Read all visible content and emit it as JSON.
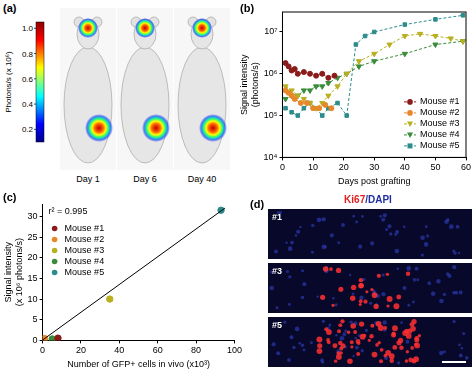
{
  "figure_labels": [
    "(a)",
    "(b)",
    "(c)",
    "(d)"
  ],
  "panel_a": {
    "colorbar": {
      "title": "Photons/s (x 10⁶)",
      "range": [
        0.1,
        1.05
      ],
      "ticks": [
        0.2,
        0.4,
        0.6,
        0.8,
        {
          "value": 1,
          "label": "1.0"
        }
      ]
    },
    "images": [
      "Day 1",
      "Day 6",
      "Day 40"
    ]
  },
  "chart_data": [
    {
      "type": "line",
      "xlabel": "Days post grafting",
      "ylabel": [
        "Signal intensity",
        "(photons/s)"
      ],
      "log": "y",
      "grid": false,
      "legend": "lower right",
      "xlim": [
        0,
        60
      ],
      "xticks": [
        0,
        10,
        20,
        30,
        40,
        50,
        60
      ],
      "ylim": [
        10000,
        30000000
      ],
      "yticks": [
        {
          "value": 10000,
          "label": "10⁴"
        },
        {
          "value": 100000,
          "label": "10⁵"
        },
        {
          "value": 1000000,
          "label": "10⁶"
        },
        {
          "value": 10000000,
          "label": "10⁷"
        }
      ],
      "series": [
        {
          "name": "Mouse #1",
          "color": "#8b1a1a",
          "marker": "circle",
          "line_style": "dashed",
          "x": [
            1,
            2,
            3,
            4,
            5,
            7,
            9,
            11,
            13,
            15,
            17
          ],
          "values": [
            1800000,
            1500000,
            1200000,
            1300000,
            1000000,
            1100000,
            1000000,
            900000,
            1000000,
            800000,
            900000
          ]
        },
        {
          "name": "Mouse #2",
          "color": "#e8862a",
          "marker": "circle",
          "line_style": "dashed",
          "x": [
            1,
            2,
            3,
            4,
            6,
            8,
            10,
            12,
            14,
            16
          ],
          "values": [
            400000,
            350000,
            300000,
            250000,
            200000,
            200000,
            150000,
            150000,
            180000,
            150000
          ]
        },
        {
          "name": "Mouse #3",
          "color": "#b8b020",
          "marker": "triangle-down",
          "line_style": "dashed",
          "x": [
            1,
            3,
            5,
            7,
            9,
            11,
            13,
            15,
            18,
            21,
            25,
            30,
            35,
            40,
            45,
            50,
            55,
            59
          ],
          "values": [
            500000,
            400000,
            300000,
            250000,
            200000,
            150000,
            200000,
            300000,
            500000,
            1000000,
            2000000,
            3000000,
            5000000,
            8000000,
            9000000,
            8000000,
            7000000,
            6000000
          ]
        },
        {
          "name": "Mouse #4",
          "color": "#3a8c3a",
          "marker": "triangle-down",
          "line_style": "dashed",
          "x": [
            1,
            3,
            5,
            7,
            9,
            11,
            13,
            15,
            18,
            21,
            25,
            30,
            40,
            50,
            59
          ],
          "values": [
            250000,
            300000,
            300000,
            400000,
            400000,
            500000,
            500000,
            600000,
            800000,
            1000000,
            1500000,
            2000000,
            3000000,
            5000000,
            6000000
          ]
        },
        {
          "name": "Mouse #5",
          "color": "#2a8c8c",
          "marker": "square",
          "line_style": "dashed",
          "x": [
            1,
            3,
            5,
            7,
            9,
            11,
            13,
            15,
            18,
            21,
            24,
            27,
            30,
            40,
            50,
            59
          ],
          "values": [
            150000,
            120000,
            100000,
            150000,
            200000,
            150000,
            100000,
            150000,
            200000,
            100000,
            5000000,
            8000000,
            10000000,
            15000000,
            20000000,
            25000000
          ]
        }
      ]
    },
    {
      "type": "scatter",
      "xlabel": "Number of GFP+ cells in vivo (x10³)",
      "ylabel": [
        "Signal intensity",
        "(x 10⁶ photons/s)"
      ],
      "annotation": "r² = 0.995",
      "grid": false,
      "legend": "upper left",
      "xlim": [
        0,
        100
      ],
      "xticks": [
        0,
        20,
        40,
        60,
        80,
        100
      ],
      "ylim": [
        0,
        33
      ],
      "yticks": [
        0,
        5,
        10,
        15,
        20,
        25,
        30
      ],
      "fit": {
        "x": [
          0,
          95
        ],
        "values": [
          0.1,
          32
        ],
        "color": "#000000"
      },
      "series": [
        {
          "name": "Mouse #1",
          "color": "#8b1a1a",
          "marker": "circle",
          "x": [
            8
          ],
          "values": [
            0.55
          ]
        },
        {
          "name": "Mouse #2",
          "color": "#e8862a",
          "marker": "circle",
          "x": [
            1
          ],
          "values": [
            0.45
          ]
        },
        {
          "name": "Mouse #3",
          "color": "#b8b020",
          "marker": "circle",
          "x": [
            35
          ],
          "values": [
            10
          ]
        },
        {
          "name": "Mouse #4",
          "color": "#3a8c3a",
          "marker": "circle",
          "x": [
            5
          ],
          "values": [
            0.35
          ]
        },
        {
          "name": "Mouse #5",
          "color": "#2a8c8c",
          "marker": "circle",
          "x": [
            93
          ],
          "values": [
            31.5
          ]
        }
      ]
    }
  ],
  "panel_d": {
    "stain_label": "Ki67/DAPI",
    "rows": [
      "#1",
      "#3",
      "#5"
    ]
  }
}
